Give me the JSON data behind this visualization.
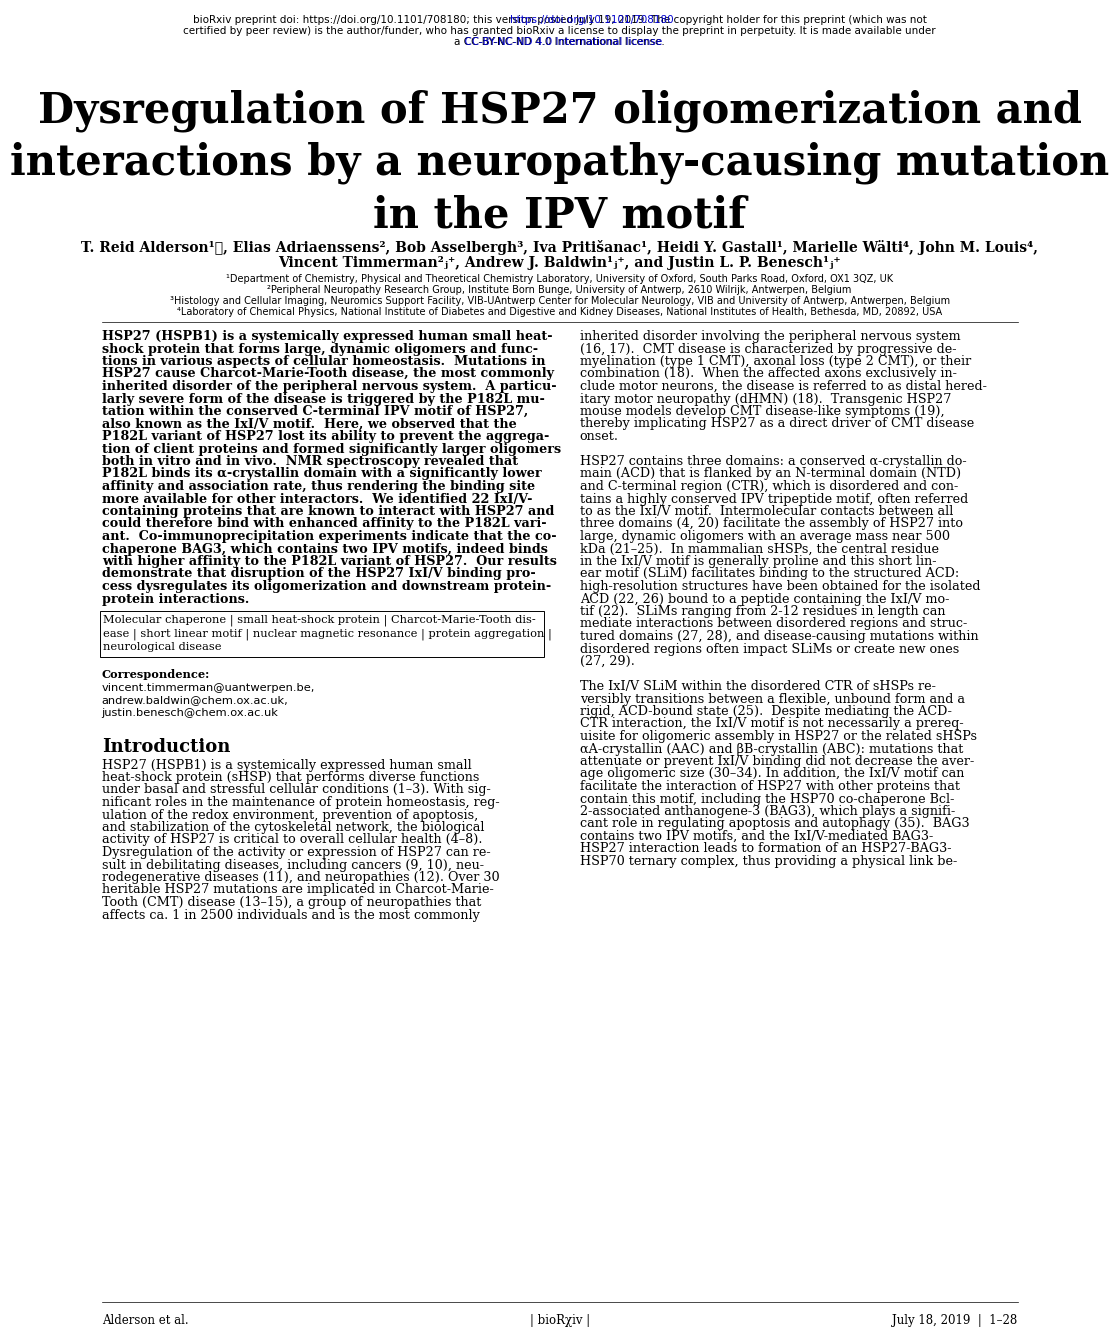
{
  "background_color": "#ffffff",
  "title_line1": "Dysregulation of HSP27 oligomerization and",
  "title_line2": "interactions by a neuropathy-causing mutation",
  "title_line3": "in the IPV motif",
  "author_line1": "T. Reid Alderson¹˴, Elias Adriaenssens², Bob Asselbergh³, Iva Pritišanac¹, Heidi Y. Gastall¹, Marielle Wälti⁴, John M. Louis⁴,",
  "author_line2": "Vincent Timmerman²ⱼ⁺, Andrew J. Baldwin¹ⱼ⁺, and Justin L. P. Benesch¹ⱼ⁺",
  "affiliations": [
    "¹Department of Chemistry, Physical and Theoretical Chemistry Laboratory, University of Oxford, South Parks Road, Oxford, OX1 3QZ, UK",
    "²Peripheral Neuropathy Research Group, Institute Born Bunge, University of Antwerp, 2610 Wilrijk, Antwerpen, Belgium",
    "³Histology and Cellular Imaging, Neuromics Support Facility, VIB-UAntwerp Center for Molecular Neurology, VIB and University of Antwerp, Antwerpen, Belgium",
    "⁴Laboratory of Chemical Physics, National Institute of Diabetes and Digestive and Kidney Diseases, National Institutes of Health, Bethesda, MD, 20892, USA"
  ],
  "header_line1": "bioRxiv preprint doi: https://doi.org/10.1101/708180; this version posted July 19, 2019. The copyright holder for this preprint (which was not",
  "header_line2": "certified by peer review) is the author/funder, who has granted bioRxiv a license to display the preprint in perpetuity. It is made available under",
  "header_line3": "a CC-BY-NC-ND 4.0 International license.",
  "abstract_lines": [
    "HSP27 (HSPB1) is a systemically expressed human small heat-",
    "shock protein that forms large, dynamic oligomers and func-",
    "tions in various aspects of cellular homeostasis.  Mutations in",
    "HSP27 cause Charcot-Marie-Tooth disease, the most commonly",
    "inherited disorder of the peripheral nervous system.  A particu-",
    "larly severe form of the disease is triggered by the P182L mu-",
    "tation within the conserved C-terminal IPV motif of HSP27,",
    "also known as the IxI/V motif.  Here, we observed that the",
    "P182L variant of HSP27 lost its ability to prevent the aggrega-",
    "tion of client proteins and formed significantly larger oligomers",
    "both in vitro and in vivo.  NMR spectroscopy revealed that",
    "P182L binds its α-crystallin domain with a significantly lower",
    "affinity and association rate, thus rendering the binding site",
    "more available for other interactors.  We identified 22 IxI/V-",
    "containing proteins that are known to interact with HSP27 and",
    "could therefore bind with enhanced affinity to the P182L vari-",
    "ant.  Co-immunoprecipitation experiments indicate that the co-",
    "chaperone BAG3, which contains two IPV motifs, indeed binds",
    "with higher affinity to the P182L variant of HSP27.  Our results",
    "demonstrate that disruption of the HSP27 IxI/V binding pro-",
    "cess dysregulates its oligomerization and downstream protein-",
    "protein interactions."
  ],
  "keywords_lines": [
    "Molecular chaperone | small heat-shock protein | Charcot-Marie-Tooth dis-",
    "ease | short linear motif | nuclear magnetic resonance | protein aggregation |",
    "neurological disease"
  ],
  "correspondence_emails": [
    "vincent.timmerman@uantwerpen.be,",
    "andrew.baldwin@chem.ox.ac.uk,",
    "justin.benesch@chem.ox.ac.uk"
  ],
  "intro_col1_lines": [
    "HSP27 (HSPB1) is a systemically expressed human small",
    "heat-shock protein (sHSP) that performs diverse functions",
    "under basal and stressful cellular conditions (1–3). With sig-",
    "nificant roles in the maintenance of protein homeostasis, reg-",
    "ulation of the redox environment, prevention of apoptosis,",
    "and stabilization of the cytoskeletal network, the biological",
    "activity of HSP27 is critical to overall cellular health (4–8).",
    "Dysregulation of the activity or expression of HSP27 can re-",
    "sult in debilitating diseases, including cancers (9, 10), neu-",
    "rodegenerative diseases (11), and neuropathies (12). Over 30",
    "heritable HSP27 mutations are implicated in Charcot-Marie-",
    "Tooth (CMT) disease (13–15), a group of neuropathies that",
    "affects ca. 1 in 2500 individuals and is the most commonly"
  ],
  "intro_col2_lines": [
    "inherited disorder involving the peripheral nervous system",
    "(16, 17).  CMT disease is characterized by progressive de-",
    "myelination (type 1 CMT), axonal loss (type 2 CMT), or their",
    "combination (18).  When the affected axons exclusively in-",
    "clude motor neurons, the disease is referred to as distal hered-",
    "itary motor neuropathy (dHMN) (18).  Transgenic HSP27",
    "mouse models develop CMT disease-like symptoms (19),",
    "thereby implicating HSP27 as a direct driver of CMT disease",
    "onset.",
    "",
    "HSP27 contains three domains: a conserved α-crystallin do-",
    "main (ACD) that is flanked by an N-terminal domain (NTD)",
    "and C-terminal region (CTR), which is disordered and con-",
    "tains a highly conserved IPV tripeptide motif, often referred",
    "to as the IxI/V motif.  Intermolecular contacts between all",
    "three domains (4, 20) facilitate the assembly of HSP27 into",
    "large, dynamic oligomers with an average mass near 500",
    "kDa (21–25).  In mammalian sHSPs, the central residue",
    "in the IxI/V motif is generally proline and this short lin-",
    "ear motif (SLiM) facilitates binding to the structured ACD:",
    "high-resolution structures have been obtained for the isolated",
    "ACD (22, 26) bound to a peptide containing the IxI/V mo-",
    "tif (22).  SLiMs ranging from 2-12 residues in length can",
    "mediate interactions between disordered regions and struc-",
    "tured domains (27, 28), and disease-causing mutations within",
    "disordered regions often impact SLiMs or create new ones",
    "(27, 29).",
    "",
    "The IxI/V SLiM within the disordered CTR of sHSPs re-",
    "versibly transitions between a flexible, unbound form and a",
    "rigid, ACD-bound state (25).  Despite mediating the ACD-",
    "CTR interaction, the IxI/V motif is not necessarily a prereq-",
    "uisite for oligomeric assembly in HSP27 or the related sHSPs",
    "αA-crystallin (AAC) and βB-crystallin (ABC): mutations that",
    "attenuate or prevent IxI/V binding did not decrease the aver-",
    "age oligomeric size (30–34). In addition, the IxI/V motif can",
    "facilitate the interaction of HSP27 with other proteins that",
    "contain this motif, including the HSP70 co-chaperone Bcl-",
    "2-associated anthanogene-3 (BAG3), which plays a signifi-",
    "cant role in regulating apoptosis and autophagy (35).  BAG3",
    "contains two IPV motifs, and the IxI/V-mediated BAG3-",
    "HSP27 interaction leads to formation of an HSP27-BAG3-",
    "HSP70 ternary complex, thus providing a physical link be-"
  ],
  "footer_left": "Alderson et al.",
  "footer_center": "| bioRχiv |",
  "footer_right": "July 18, 2019  |  1–28"
}
